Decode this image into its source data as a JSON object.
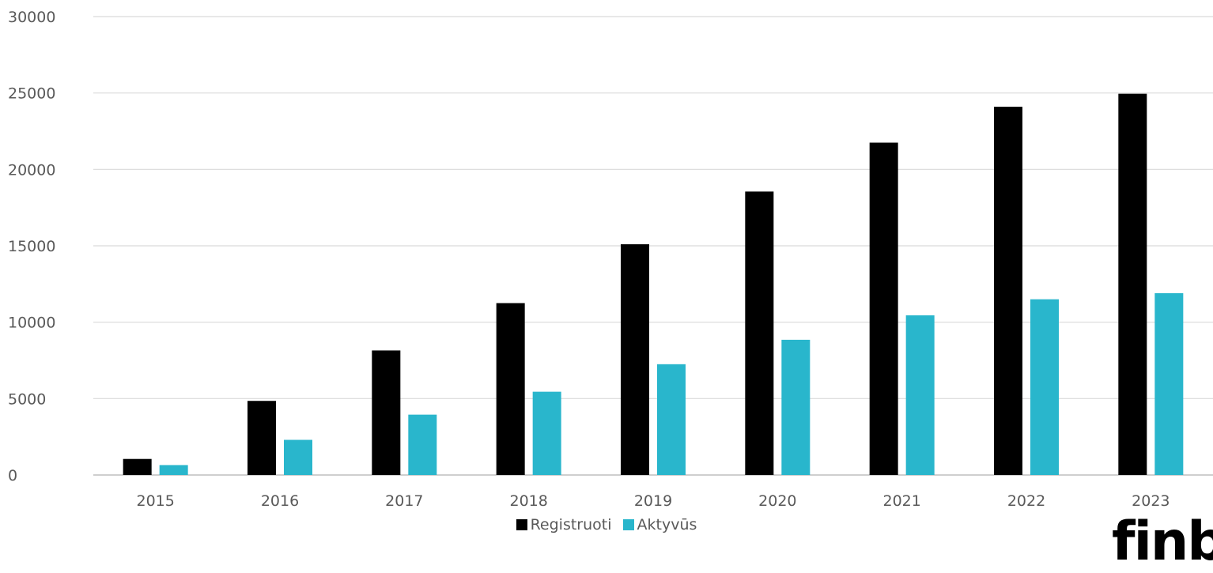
{
  "chart_data": {
    "type": "bar",
    "categories": [
      "2015",
      "2016",
      "2017",
      "2018",
      "2019",
      "2020",
      "2021",
      "2022",
      "2023"
    ],
    "series": [
      {
        "name": "Registruoti",
        "color": "#000000",
        "values": [
          1050,
          4850,
          8150,
          11250,
          15100,
          18550,
          21750,
          24100,
          24950
        ]
      },
      {
        "name": "Aktyvūs",
        "color": "#29b6cc",
        "values": [
          650,
          2300,
          3950,
          5450,
          7250,
          8850,
          10450,
          11500,
          11900
        ]
      }
    ],
    "ylim": [
      0,
      30000
    ],
    "yticks": [
      "0",
      "5000",
      "10000",
      "15000",
      "20000",
      "25000",
      "30000"
    ],
    "xlabel": "",
    "ylabel": "",
    "grid": true,
    "legend_position": "bottom-center"
  },
  "logo_text": "finb"
}
